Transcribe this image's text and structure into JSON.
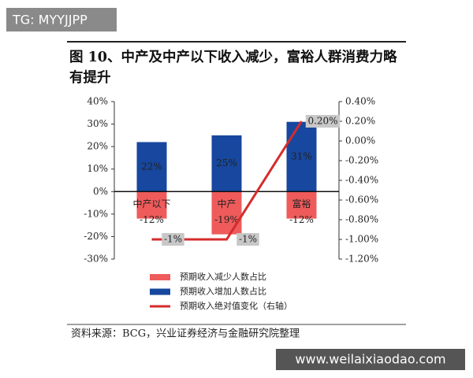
{
  "chart_data": {
    "type": "bar",
    "title": "图 10、中产及中产以下收入减少，富裕人群消费力略有提升",
    "source": "资料来源：BCG，兴业证券经济与金融研究院整理",
    "watermarks": [
      "TG: MYYJJPP",
      "www.weilaixiaodao.com"
    ],
    "categories": [
      "中产以下",
      "中产",
      "富裕"
    ],
    "series": [
      {
        "name": "预期收入减少人数占比",
        "type": "bar",
        "color": "#ef5b5b",
        "values": [
          -12,
          -19,
          -12
        ],
        "value_labels": [
          "-12%",
          "-19%",
          "-12%"
        ]
      },
      {
        "name": "预期收入增加人数占比",
        "type": "bar",
        "color": "#17479e",
        "values": [
          22,
          25,
          31
        ],
        "value_labels": [
          "22%",
          "25%",
          "31%"
        ]
      },
      {
        "name": "预期收入绝对值变化（右轴）",
        "type": "line",
        "axis": "y2",
        "color": "#d62b2b",
        "values": [
          -1,
          -1,
          0.2
        ],
        "value_labels": [
          "-1%",
          "-1%",
          "0.20%"
        ]
      }
    ],
    "ylim": [
      -30,
      40
    ],
    "yticks": [
      {
        "value": -30,
        "label": "-30%"
      },
      {
        "value": -20,
        "label": "-20%"
      },
      {
        "value": -10,
        "label": "-10%"
      },
      {
        "value": 0,
        "label": "0%"
      },
      {
        "value": 10,
        "label": "10%"
      },
      {
        "value": 20,
        "label": "20%"
      },
      {
        "value": 30,
        "label": "30%"
      },
      {
        "value": 40,
        "label": "40%"
      }
    ],
    "y2lim": [
      -1.2,
      0.4
    ],
    "y2ticks": [
      {
        "value": -1.2,
        "label": "-1.20%"
      },
      {
        "value": -1.0,
        "label": "-1.00%"
      },
      {
        "value": -0.8,
        "label": "-0.80%"
      },
      {
        "value": -0.6,
        "label": "-0.60%"
      },
      {
        "value": -0.4,
        "label": "-0.40%"
      },
      {
        "value": -0.2,
        "label": "-0.20%"
      },
      {
        "value": 0,
        "label": "0.00%"
      },
      {
        "value": 0.2,
        "label": "0.20%"
      },
      {
        "value": 0.4,
        "label": "0.40%"
      }
    ]
  }
}
